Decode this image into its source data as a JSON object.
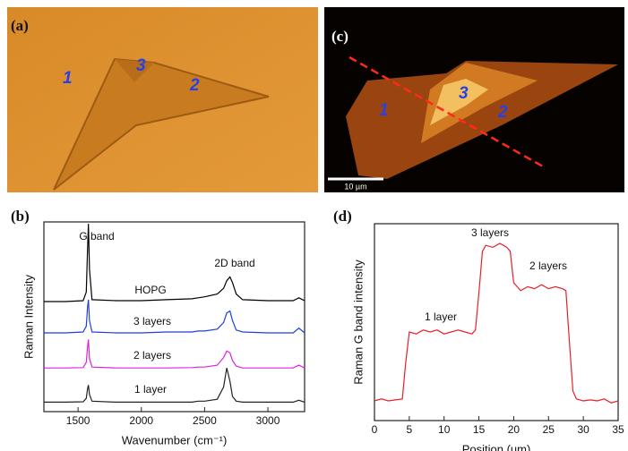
{
  "panels": {
    "a": {
      "label": "(a)",
      "regions": [
        "1",
        "3",
        "2"
      ]
    },
    "c": {
      "label": "(c)",
      "regions": [
        "1",
        "3",
        "2"
      ],
      "scale_bar": "10 µm"
    }
  },
  "chart_data": [
    {
      "type": "line",
      "label": "(b)",
      "x_label": "Wavenumber (cm⁻¹)",
      "y_label": "Raman Intensity",
      "annotations": [
        "G band",
        "2D band"
      ],
      "x": [
        1230,
        1400,
        1540,
        1565,
        1575,
        1582,
        1590,
        1610,
        1800,
        2000,
        2200,
        2400,
        2450,
        2500,
        2600,
        2650,
        2675,
        2700,
        2720,
        2750,
        2800,
        3000,
        3200,
        3245,
        3290
      ],
      "series": [
        {
          "name": "HOPG",
          "color": "#000000",
          "values": [
            5.8,
            5.8,
            5.85,
            6.3,
            8.5,
            9.9,
            7.5,
            5.9,
            5.85,
            5.85,
            5.9,
            5.95,
            6.0,
            6.05,
            6.2,
            6.5,
            6.9,
            7.1,
            6.8,
            6.2,
            5.9,
            5.85,
            5.85,
            6.0,
            5.85
          ]
        },
        {
          "name": "3 layers",
          "color": "#1f3fe0",
          "values": [
            4.15,
            4.15,
            4.2,
            4.5,
            5.5,
            5.9,
            4.8,
            4.2,
            4.15,
            4.15,
            4.2,
            4.2,
            4.25,
            4.25,
            4.35,
            4.7,
            5.2,
            5.3,
            4.8,
            4.3,
            4.2,
            4.15,
            4.15,
            4.4,
            4.15
          ]
        },
        {
          "name": "2 layers",
          "color": "#e020e0",
          "values": [
            2.3,
            2.3,
            2.32,
            2.6,
            3.4,
            3.8,
            2.8,
            2.35,
            2.3,
            2.3,
            2.3,
            2.32,
            2.35,
            2.35,
            2.45,
            2.85,
            3.2,
            3.1,
            2.7,
            2.4,
            2.3,
            2.3,
            2.3,
            2.45,
            2.3
          ]
        },
        {
          "name": "1 layer",
          "color": "#222222",
          "values": [
            0.5,
            0.5,
            0.52,
            0.7,
            1.2,
            1.4,
            0.9,
            0.55,
            0.5,
            0.5,
            0.5,
            0.5,
            0.55,
            0.55,
            0.65,
            1.3,
            2.3,
            1.6,
            0.8,
            0.55,
            0.5,
            0.5,
            0.5,
            0.6,
            0.5
          ]
        }
      ],
      "xlim": [
        1230,
        3290
      ],
      "xticks": [
        1500,
        2000,
        2500,
        3000
      ],
      "ylim": [
        0,
        10
      ]
    },
    {
      "type": "line",
      "label": "(d)",
      "x_label": "Position (um)",
      "y_label": "Raman G band intensity",
      "annotations": [
        "1 layer",
        "3 layers",
        "2 layers"
      ],
      "x": [
        0,
        1,
        2,
        3,
        4,
        4.5,
        5,
        6,
        7,
        8,
        9,
        10,
        11,
        12,
        13,
        14,
        14.5,
        15,
        15.5,
        16,
        17,
        18,
        19,
        19.5,
        20,
        21,
        22,
        23,
        24,
        25,
        26,
        27,
        27.5,
        28,
        28.5,
        29,
        30,
        31,
        32,
        33,
        34,
        35
      ],
      "series": [
        {
          "color": "#e8202a",
          "values": [
            1.0,
            1.1,
            1.0,
            1.05,
            1.1,
            3.0,
            4.5,
            4.4,
            4.6,
            4.5,
            4.6,
            4.4,
            4.5,
            4.6,
            4.5,
            4.4,
            4.6,
            6.5,
            8.6,
            8.9,
            8.8,
            9.0,
            8.8,
            8.6,
            7.0,
            6.6,
            6.8,
            6.7,
            6.9,
            6.7,
            6.8,
            6.7,
            6.6,
            4.0,
            1.5,
            1.1,
            1.0,
            1.05,
            1.0,
            1.1,
            0.9,
            1.0
          ]
        }
      ],
      "xlim": [
        0,
        35
      ],
      "xticks": [
        0,
        5,
        10,
        15,
        20,
        25,
        30,
        35
      ],
      "ylim": [
        0,
        10
      ]
    }
  ]
}
